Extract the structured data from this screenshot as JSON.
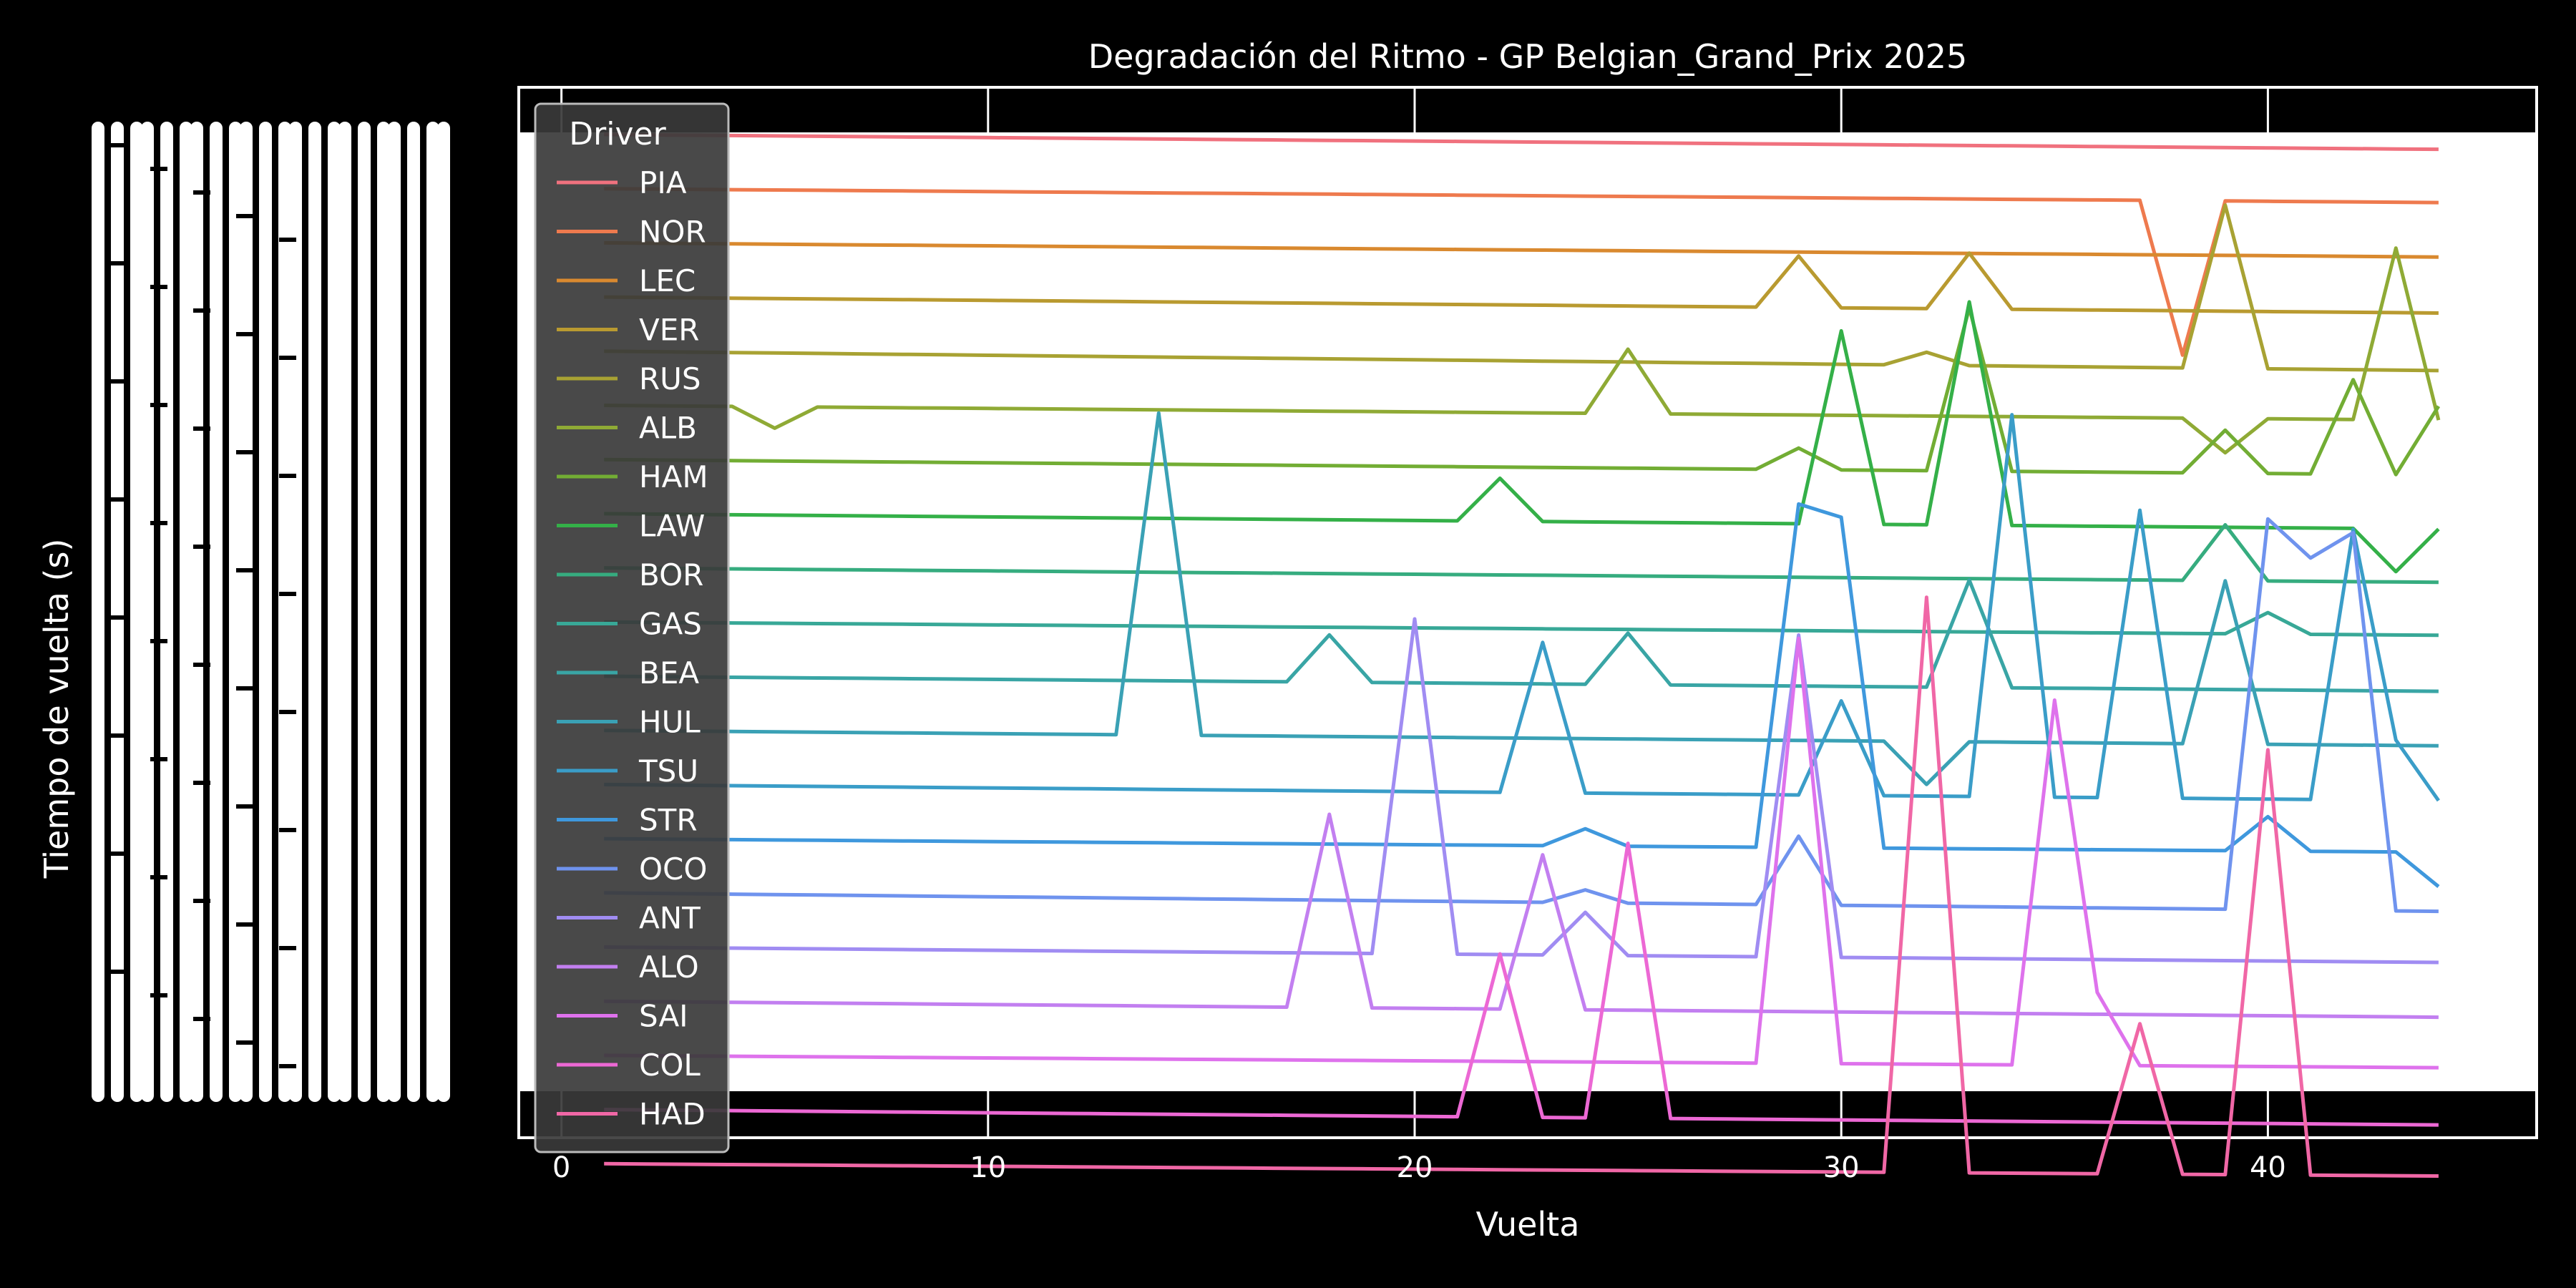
{
  "chart_data": {
    "type": "line",
    "title": "Degradación del Ritmo - GP Belgian_Grand_Prix 2025",
    "xlabel": "Vuelta",
    "ylabel": "Tiempo de vuelta (s)",
    "xlim": [
      -1,
      46.3
    ],
    "xticks": [
      0,
      10,
      20,
      30,
      40
    ],
    "grid": true,
    "legend": {
      "title": "Driver",
      "placement": "upper-left"
    },
    "x": [
      1,
      2,
      3,
      4,
      5,
      6,
      7,
      8,
      9,
      10,
      11,
      12,
      13,
      14,
      15,
      16,
      17,
      18,
      19,
      20,
      21,
      22,
      23,
      24,
      25,
      26,
      27,
      28,
      29,
      30,
      31,
      32,
      33,
      34,
      35,
      36,
      37,
      38,
      39,
      40,
      41,
      42,
      43,
      44
    ],
    "series": [
      {
        "name": "PIA",
        "color": "#f0717e",
        "base": 1,
        "slope": 0.0048,
        "spikes": []
      },
      {
        "name": "NOR",
        "color": "#ee7a4e",
        "base": 2,
        "slope": 0.0045,
        "spikes": [
          [
            38,
            3.6
          ]
        ]
      },
      {
        "name": "LEC",
        "color": "#d9892f",
        "base": 3,
        "slope": 0.0046,
        "spikes": []
      },
      {
        "name": "VER",
        "color": "#b99a30",
        "base": 4,
        "slope": 0.0052,
        "spikes": [
          [
            29,
            -1.2
          ],
          [
            33,
            -1.3
          ]
        ]
      },
      {
        "name": "RUS",
        "color": "#a8a233",
        "base": 5,
        "slope": 0.0063,
        "spikes": [
          [
            32,
            -0.3
          ],
          [
            39,
            -3.8
          ]
        ]
      },
      {
        "name": "ALB",
        "color": "#8faa35",
        "base": 6,
        "slope": 0.0048,
        "spikes": [
          [
            5,
            0.5
          ],
          [
            25,
            -1.5
          ],
          [
            39,
            0.8
          ],
          [
            43,
            -4.0
          ]
        ]
      },
      {
        "name": "HAM",
        "color": "#72ad34",
        "base": 7,
        "slope": 0.005,
        "spikes": [
          [
            29,
            -0.5
          ],
          [
            33,
            -3.8
          ],
          [
            39,
            -1.0
          ],
          [
            42,
            -2.2
          ],
          [
            44,
            -1.6
          ]
        ]
      },
      {
        "name": "LAW",
        "color": "#34b048",
        "base": 8,
        "slope": 0.005,
        "spikes": [
          [
            22,
            -1.0
          ],
          [
            30,
            -4.5
          ],
          [
            33,
            -5.2
          ],
          [
            43,
            1.0
          ]
        ]
      },
      {
        "name": "BOR",
        "color": "#36ac7f",
        "base": 9,
        "slope": 0.0047,
        "spikes": [
          [
            39,
            -1.3
          ]
        ]
      },
      {
        "name": "GAS",
        "color": "#38a897",
        "base": 10,
        "slope": 0.0043,
        "spikes": [
          [
            40,
            -0.5
          ]
        ]
      },
      {
        "name": "BEA",
        "color": "#39a5a5",
        "base": 11,
        "slope": 0.0049,
        "spikes": [
          [
            18,
            -1.1
          ],
          [
            25,
            -1.2
          ],
          [
            33,
            -2.5
          ]
        ]
      },
      {
        "name": "HUL",
        "color": "#3aa1b5",
        "base": 12,
        "slope": 0.005,
        "spikes": [
          [
            14,
            -7.5
          ],
          [
            32,
            1.0
          ],
          [
            39,
            -3.8
          ]
        ]
      },
      {
        "name": "TSU",
        "color": "#3a9dc8",
        "base": 13,
        "slope": 0.0052,
        "spikes": [
          [
            23,
            -3.5
          ],
          [
            30,
            -2.2
          ],
          [
            34,
            -8.9
          ],
          [
            37,
            -6.7
          ],
          [
            42,
            -6.3
          ],
          [
            43,
            -1.4
          ]
        ]
      },
      {
        "name": "STR",
        "color": "#3f98dd",
        "base": 14,
        "slope": 0.0044,
        "spikes": [
          [
            24,
            -0.4
          ],
          [
            29,
            -8.0
          ],
          [
            30,
            -7.7
          ],
          [
            40,
            -0.8
          ],
          [
            44,
            0.8
          ]
        ]
      },
      {
        "name": "OCO",
        "color": "#6f93ee",
        "base": 15,
        "slope": 0.006,
        "spikes": [
          [
            24,
            -0.3
          ],
          [
            29,
            -1.6
          ],
          [
            40,
            -9.1
          ],
          [
            41,
            -8.2
          ],
          [
            42,
            -8.8
          ]
        ]
      },
      {
        "name": "ANT",
        "color": "#a08cf2",
        "base": 16,
        "slope": 0.005,
        "spikes": [
          [
            20,
            -7.8
          ],
          [
            24,
            -1.0
          ],
          [
            29,
            -7.5
          ]
        ]
      },
      {
        "name": "ALO",
        "color": "#c27ff0",
        "base": 17,
        "slope": 0.0052,
        "spikes": [
          [
            18,
            -4.5
          ],
          [
            23,
            -3.6
          ]
        ]
      },
      {
        "name": "SAI",
        "color": "#de72ec",
        "base": 18,
        "slope": 0.004,
        "spikes": [
          [
            29,
            -9.9
          ],
          [
            35,
            -8.5
          ],
          [
            36,
            -1.7
          ]
        ]
      },
      {
        "name": "COL",
        "color": "#ec68d4",
        "base": 19,
        "slope": 0.005,
        "spikes": [
          [
            22,
            -3.8
          ],
          [
            25,
            -6.4
          ]
        ]
      },
      {
        "name": "HAD",
        "color": "#f067a6",
        "base": 20,
        "slope": 0.004,
        "spikes": [
          [
            32,
            -13.4
          ],
          [
            37,
            -3.5
          ],
          [
            40,
            -9.9
          ]
        ]
      }
    ]
  }
}
